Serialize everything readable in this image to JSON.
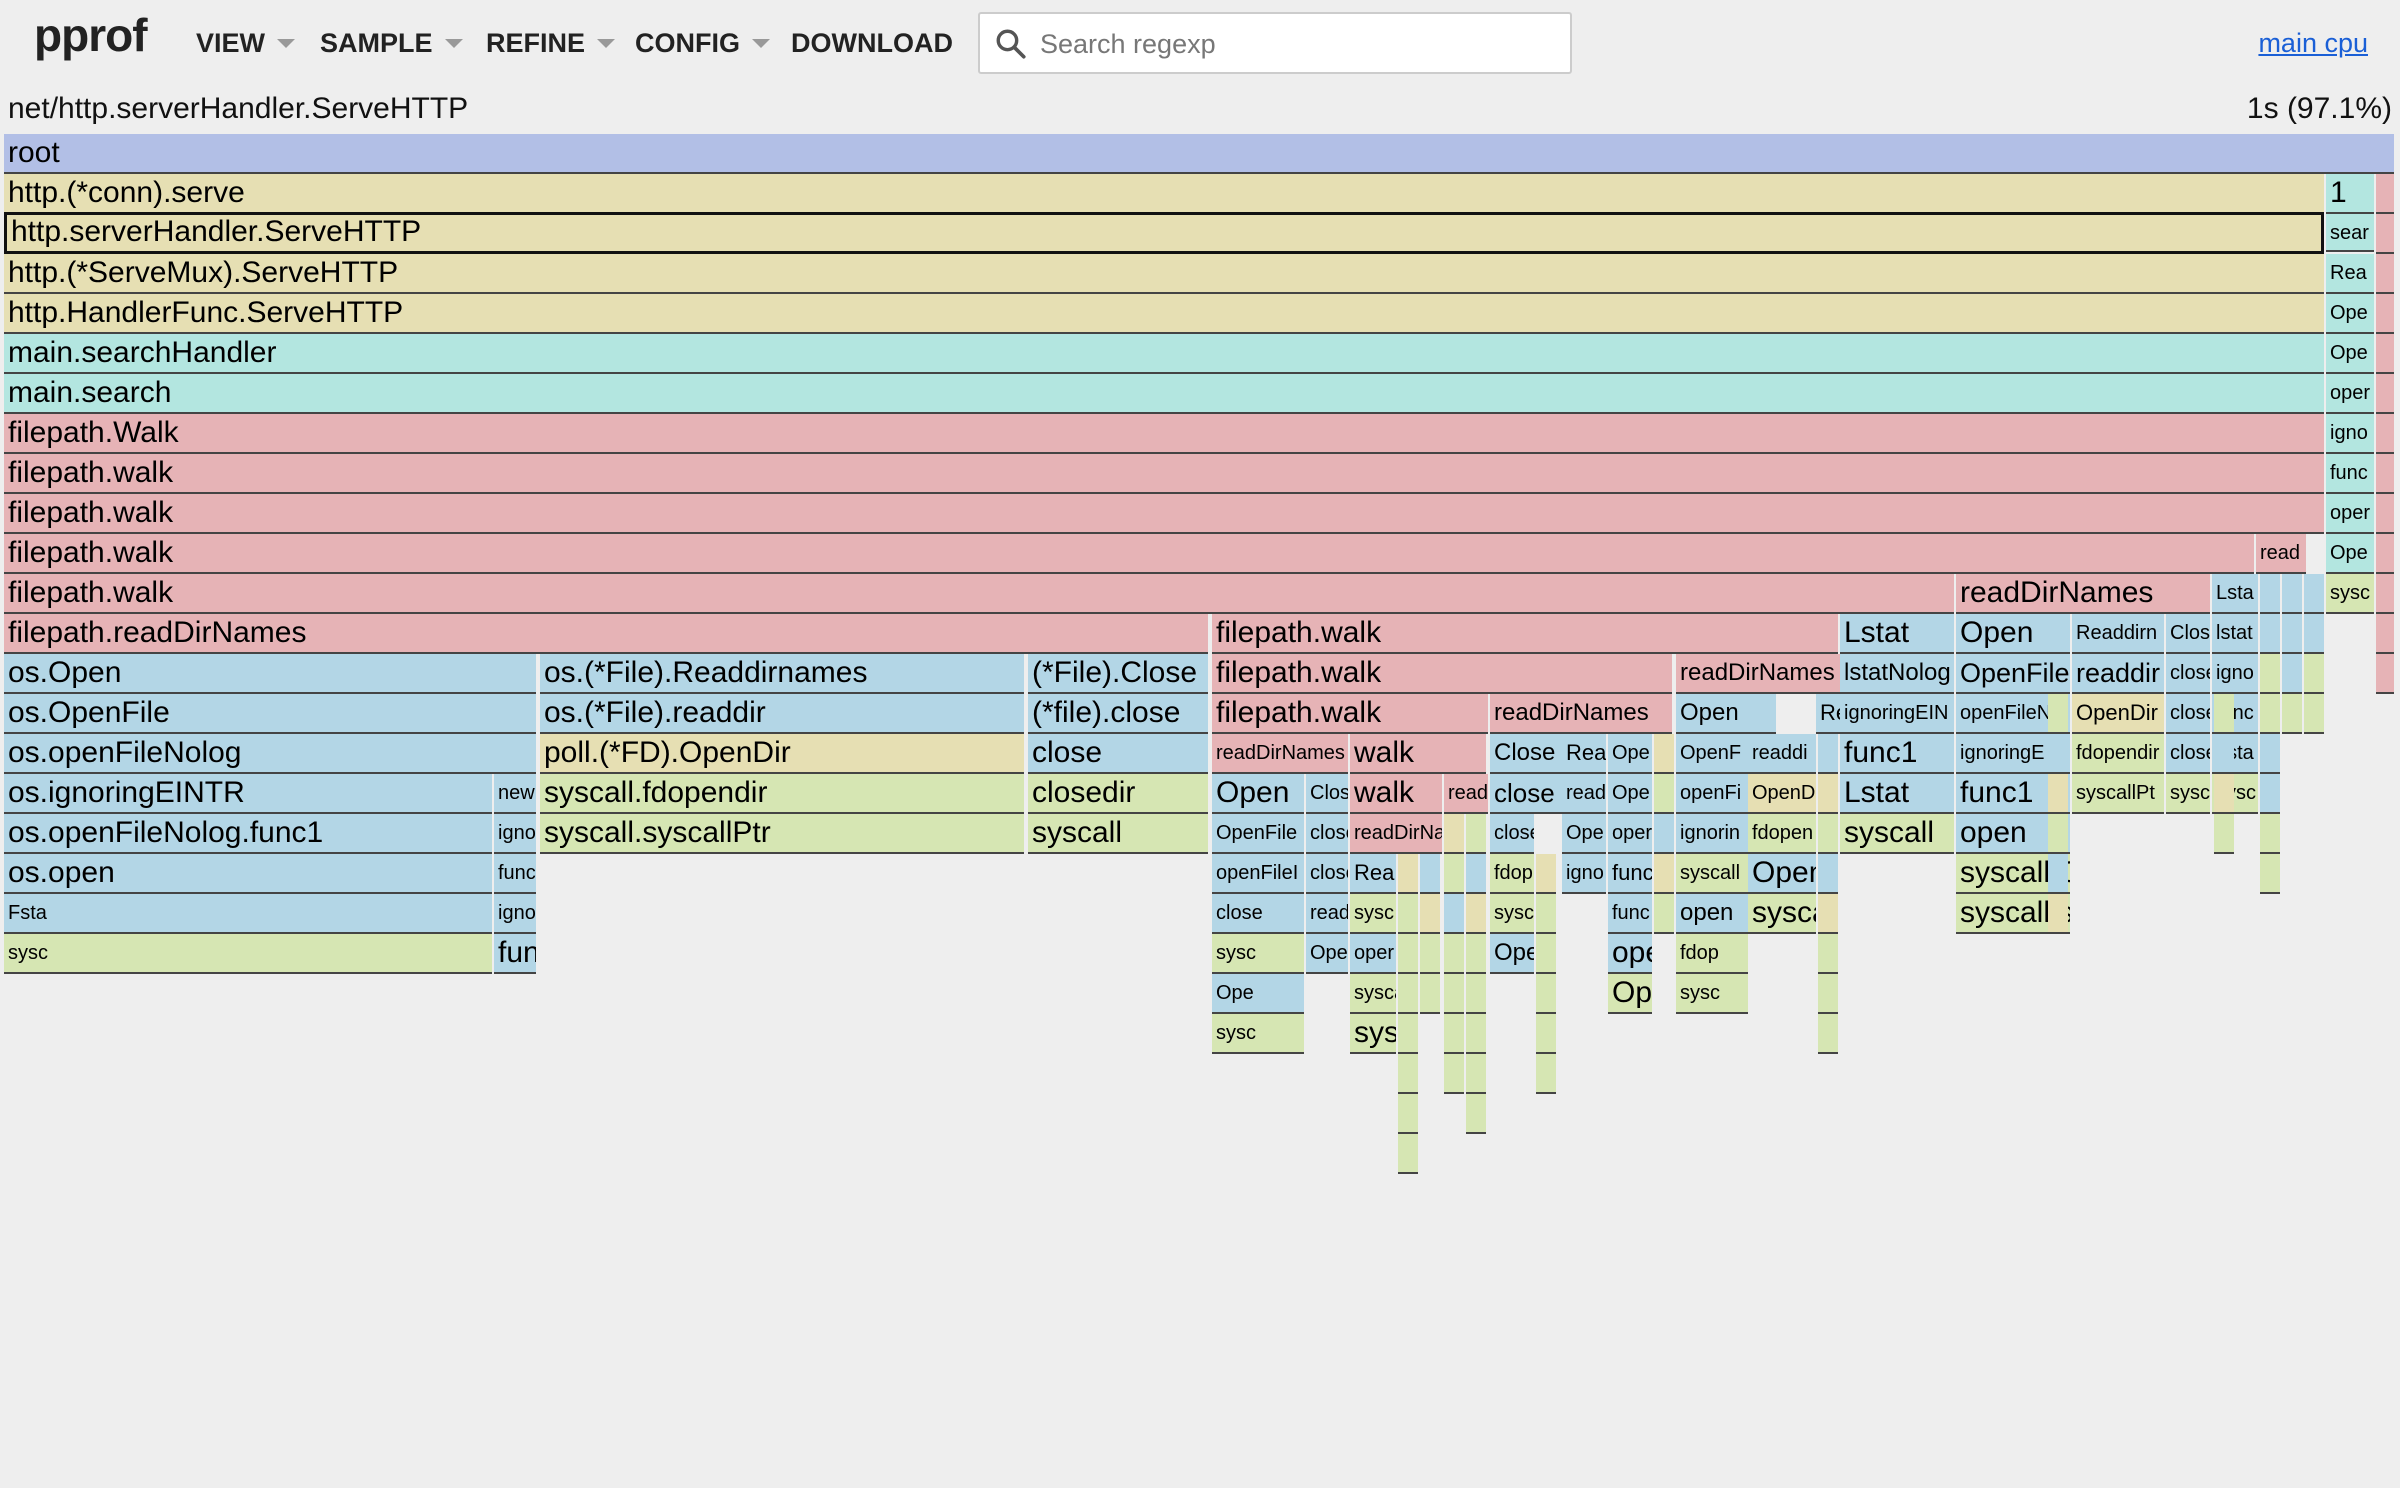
{
  "app": {
    "logo": "pprof",
    "menus": [
      {
        "name": "view",
        "label": "VIEW",
        "caret": true
      },
      {
        "name": "sample",
        "label": "SAMPLE",
        "caret": true
      },
      {
        "name": "refine",
        "label": "REFINE",
        "caret": true
      },
      {
        "name": "config",
        "label": "CONFIG",
        "caret": true
      },
      {
        "name": "download",
        "label": "DOWNLOAD",
        "caret": false
      }
    ],
    "search": {
      "placeholder": "Search regexp",
      "value": "",
      "icon": "search-icon"
    },
    "profile_link": "main cpu"
  },
  "header": {
    "selected_function": "net/http.serverHandler.ServeHTTP",
    "selected_total": "1s (97.1%)"
  },
  "palette": {
    "blue_violet": "#b2bfe6",
    "tan": "#e6dfb3",
    "cyan": "#b3e6e0",
    "pink": "#e6b3b6",
    "blue": "#b3d6e6",
    "green": "#d6e6b3"
  },
  "flame": [
    {
      "t": "root",
      "c": "blue_violet",
      "fs": 30
    },
    {
      "t": "http.(*conn).serve",
      "c": "tan",
      "fs": 30
    },
    {
      "t": "1",
      "c": "cyan",
      "fs": 30
    },
    {
      "t": "http.serverHandler.ServeHTTP",
      "c": "tan",
      "fs": 30,
      "sel": true
    },
    {
      "t": "sear",
      "c": "cyan",
      "fs": 20
    },
    {
      "t": "http.(*ServeMux).ServeHTTP",
      "c": "tan",
      "fs": 30
    },
    {
      "t": "Rea",
      "c": "cyan",
      "fs": 20
    },
    {
      "t": "http.HandlerFunc.ServeHTTP",
      "c": "tan",
      "fs": 30
    },
    {
      "t": "Ope",
      "c": "cyan",
      "fs": 20
    },
    {
      "t": "main.searchHandler",
      "c": "cyan",
      "fs": 30
    },
    {
      "t": "Ope",
      "c": "cyan",
      "fs": 20
    },
    {
      "t": "main.search",
      "c": "cyan",
      "fs": 30
    },
    {
      "t": "oper",
      "c": "cyan",
      "fs": 20
    },
    {
      "t": "filepath.Walk",
      "c": "pink",
      "fs": 30
    },
    {
      "t": "igno",
      "c": "cyan",
      "fs": 20
    },
    {
      "t": "filepath.walk",
      "c": "pink",
      "fs": 30
    },
    {
      "t": "func",
      "c": "cyan",
      "fs": 20
    },
    {
      "t": "filepath.walk",
      "c": "pink",
      "fs": 30
    },
    {
      "t": "oper",
      "c": "cyan",
      "fs": 20
    },
    {
      "t": "filepath.walk",
      "c": "pink",
      "fs": 30
    },
    {
      "t": "read",
      "c": "pink",
      "fs": 20
    },
    {
      "t": "Ope",
      "c": "cyan",
      "fs": 20
    },
    {
      "t": "filepath.walk",
      "c": "pink",
      "fs": 30
    },
    {
      "t": "readDirNames",
      "c": "pink",
      "fs": 30
    },
    {
      "t": "Lsta",
      "c": "blue",
      "fs": 20
    },
    {
      "t": "sysc",
      "c": "green",
      "fs": 20
    },
    {
      "t": "filepath.readDirNames",
      "c": "pink",
      "fs": 30
    },
    {
      "t": "filepath.walk",
      "c": "pink",
      "fs": 30
    },
    {
      "t": "Lstat",
      "c": "blue",
      "fs": 30
    },
    {
      "t": "Open",
      "c": "blue",
      "fs": 30
    },
    {
      "t": "Readdirn",
      "c": "blue",
      "fs": 20
    },
    {
      "t": "Clos",
      "c": "blue",
      "fs": 20
    },
    {
      "t": "lstat",
      "c": "blue",
      "fs": 20
    },
    {
      "t": "os.Open",
      "c": "blue",
      "fs": 30
    },
    {
      "t": "os.(*File).Readdirnames",
      "c": "blue",
      "fs": 30
    },
    {
      "t": "(*File).Close",
      "c": "blue",
      "fs": 30
    },
    {
      "t": "filepath.walk",
      "c": "pink",
      "fs": 30
    },
    {
      "t": "readDirNames",
      "c": "pink",
      "fs": 24
    },
    {
      "t": "lstatNolog",
      "c": "blue",
      "fs": 24
    },
    {
      "t": "OpenFile",
      "c": "blue",
      "fs": 27
    },
    {
      "t": "readdir",
      "c": "blue",
      "fs": 27
    },
    {
      "t": "close",
      "c": "blue",
      "fs": 20
    },
    {
      "t": "igno",
      "c": "blue",
      "fs": 20
    },
    {
      "t": "os.OpenFile",
      "c": "blue",
      "fs": 30
    },
    {
      "t": "os.(*File).readdir",
      "c": "blue",
      "fs": 30
    },
    {
      "t": "(*file).close",
      "c": "blue",
      "fs": 30
    },
    {
      "t": "filepath.walk",
      "c": "pink",
      "fs": 30
    },
    {
      "t": "readDirNames",
      "c": "pink",
      "fs": 24
    },
    {
      "t": "Open",
      "c": "blue",
      "fs": 24
    },
    {
      "t": "Readd",
      "c": "blue",
      "fs": 22
    },
    {
      "t": "ignoringEIN",
      "c": "blue",
      "fs": 20
    },
    {
      "t": "openFileNo",
      "c": "blue",
      "fs": 20
    },
    {
      "t": "OpenDir",
      "c": "tan",
      "fs": 22
    },
    {
      "t": "close",
      "c": "blue",
      "fs": 20
    },
    {
      "t": "func",
      "c": "blue",
      "fs": 20
    },
    {
      "t": "os.openFileNolog",
      "c": "blue",
      "fs": 30
    },
    {
      "t": "poll.(*FD).OpenDir",
      "c": "tan",
      "fs": 30
    },
    {
      "t": "close",
      "c": "blue",
      "fs": 30
    },
    {
      "t": "readDirNames",
      "c": "pink",
      "fs": 20
    },
    {
      "t": "walk",
      "c": "pink",
      "fs": 30
    },
    {
      "t": "Close",
      "c": "blue",
      "fs": 24
    },
    {
      "t": "Rea",
      "c": "blue",
      "fs": 22
    },
    {
      "t": "Ope",
      "c": "blue",
      "fs": 20
    },
    {
      "t": "OpenF",
      "c": "blue",
      "fs": 20
    },
    {
      "t": "readdi",
      "c": "blue",
      "fs": 20
    },
    {
      "t": "func1",
      "c": "blue",
      "fs": 30
    },
    {
      "t": "ignoringE",
      "c": "blue",
      "fs": 20
    },
    {
      "t": "fdopendir",
      "c": "green",
      "fs": 20
    },
    {
      "t": "close",
      "c": "blue",
      "fs": 20
    },
    {
      "t": "Lsta",
      "c": "blue",
      "fs": 20
    },
    {
      "t": "os.ignoringEINTR",
      "c": "blue",
      "fs": 30
    },
    {
      "t": "new",
      "c": "blue",
      "fs": 20
    },
    {
      "t": "syscall.fdopendir",
      "c": "green",
      "fs": 30
    },
    {
      "t": "closedir",
      "c": "green",
      "fs": 30
    },
    {
      "t": "Open",
      "c": "blue",
      "fs": 30
    },
    {
      "t": "Clos",
      "c": "blue",
      "fs": 20
    },
    {
      "t": "walk",
      "c": "pink",
      "fs": 30
    },
    {
      "t": "read",
      "c": "pink",
      "fs": 20
    },
    {
      "t": "close",
      "c": "blue",
      "fs": 26
    },
    {
      "t": "read",
      "c": "blue",
      "fs": 20
    },
    {
      "t": "Ope",
      "c": "blue",
      "fs": 20
    },
    {
      "t": "openFi",
      "c": "blue",
      "fs": 20
    },
    {
      "t": "OpenD",
      "c": "tan",
      "fs": 20
    },
    {
      "t": "Lstat",
      "c": "blue",
      "fs": 30
    },
    {
      "t": "func1",
      "c": "blue",
      "fs": 30
    },
    {
      "t": "syscallPt",
      "c": "green",
      "fs": 20
    },
    {
      "t": "sysc",
      "c": "green",
      "fs": 20
    },
    {
      "t": "sysc",
      "c": "green",
      "fs": 20
    },
    {
      "t": "os.openFileNolog.func1",
      "c": "blue",
      "fs": 30
    },
    {
      "t": "igno",
      "c": "blue",
      "fs": 20
    },
    {
      "t": "syscall.syscallPtr",
      "c": "green",
      "fs": 30
    },
    {
      "t": "syscall",
      "c": "green",
      "fs": 30
    },
    {
      "t": "OpenFile",
      "c": "blue",
      "fs": 20
    },
    {
      "t": "close",
      "c": "blue",
      "fs": 20
    },
    {
      "t": "readDirNa",
      "c": "pink",
      "fs": 20
    },
    {
      "t": "close",
      "c": "blue",
      "fs": 20
    },
    {
      "t": "Ope",
      "c": "blue",
      "fs": 20
    },
    {
      "t": "oper",
      "c": "blue",
      "fs": 20
    },
    {
      "t": "ignorin",
      "c": "blue",
      "fs": 20
    },
    {
      "t": "fdopen",
      "c": "green",
      "fs": 20
    },
    {
      "t": "syscall",
      "c": "green",
      "fs": 30
    },
    {
      "t": "open",
      "c": "blue",
      "fs": 30
    },
    {
      "t": "os.open",
      "c": "blue",
      "fs": 30
    },
    {
      "t": "func",
      "c": "blue",
      "fs": 20
    },
    {
      "t": "openFileI",
      "c": "blue",
      "fs": 20
    },
    {
      "t": "close",
      "c": "blue",
      "fs": 20
    },
    {
      "t": "Rea",
      "c": "blue",
      "fs": 22
    },
    {
      "t": "fdop",
      "c": "green",
      "fs": 20
    },
    {
      "t": "igno",
      "c": "blue",
      "fs": 20
    },
    {
      "t": "func1",
      "c": "blue",
      "fs": 22
    },
    {
      "t": "syscall",
      "c": "green",
      "fs": 20
    },
    {
      "t": "Open",
      "c": "blue",
      "fs": 30
    },
    {
      "t": "syscall.Open",
      "c": "green",
      "fs": 30
    },
    {
      "t": "Fsta",
      "c": "blue",
      "fs": 20
    },
    {
      "t": "ignoringE",
      "c": "blue",
      "fs": 20
    },
    {
      "t": "close",
      "c": "blue",
      "fs": 20
    },
    {
      "t": "read",
      "c": "blue",
      "fs": 20
    },
    {
      "t": "sysc",
      "c": "green",
      "fs": 20
    },
    {
      "t": "sysc",
      "c": "green",
      "fs": 20
    },
    {
      "t": "func",
      "c": "blue",
      "fs": 20
    },
    {
      "t": "open",
      "c": "blue",
      "fs": 24
    },
    {
      "t": "syscall",
      "c": "green",
      "fs": 30
    },
    {
      "t": "syscall.syscall",
      "c": "green",
      "fs": 30
    },
    {
      "t": "sysc",
      "c": "green",
      "fs": 20
    },
    {
      "t": "func1",
      "c": "blue",
      "fs": 30
    },
    {
      "t": "sysc",
      "c": "green",
      "fs": 20
    },
    {
      "t": "Ope",
      "c": "blue",
      "fs": 20
    },
    {
      "t": "oper",
      "c": "blue",
      "fs": 20
    },
    {
      "t": "Open",
      "c": "blue",
      "fs": 24
    },
    {
      "t": "open",
      "c": "blue",
      "fs": 30
    },
    {
      "t": "fdop",
      "c": "green",
      "fs": 20
    },
    {
      "t": "Ope",
      "c": "blue",
      "fs": 20
    },
    {
      "t": "syscall",
      "c": "green",
      "fs": 20
    },
    {
      "t": "Open",
      "c": "green",
      "fs": 30
    },
    {
      "t": "sysc",
      "c": "green",
      "fs": 20
    },
    {
      "t": "sysc",
      "c": "green",
      "fs": 20
    },
    {
      "t": "syscall",
      "c": "green",
      "fs": 30
    }
  ]
}
